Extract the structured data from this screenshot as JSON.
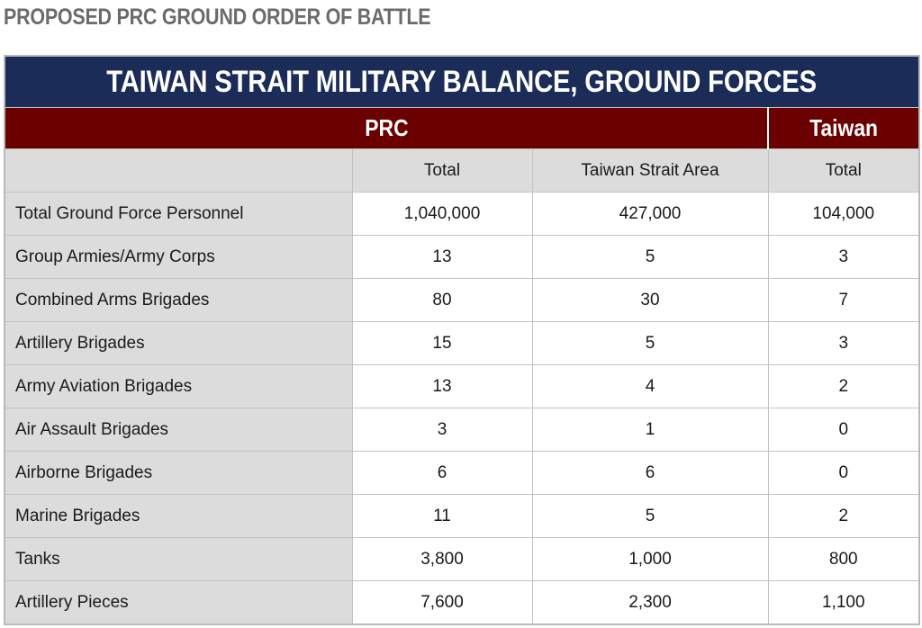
{
  "page_heading": "PROPOSED PRC GROUND ORDER OF BATTLE",
  "table": {
    "title": "TAIWAN STRAIT MILITARY BALANCE, GROUND FORCES",
    "groups": {
      "prc": "PRC",
      "taiwan": "Taiwan"
    },
    "subheaders": {
      "label": "",
      "prc_total": "Total",
      "prc_strait": "Taiwan Strait Area",
      "taiwan_total": "Total"
    },
    "rows": [
      {
        "label": "Total Ground Force Personnel",
        "prc_total": "1,040,000",
        "prc_strait": "427,000",
        "taiwan_total": "104,000"
      },
      {
        "label": "Group Armies/Army Corps",
        "prc_total": "13",
        "prc_strait": "5",
        "taiwan_total": "3"
      },
      {
        "label": "Combined Arms Brigades",
        "prc_total": "80",
        "prc_strait": "30",
        "taiwan_total": "7"
      },
      {
        "label": "Artillery Brigades",
        "prc_total": "15",
        "prc_strait": "5",
        "taiwan_total": "3"
      },
      {
        "label": "Army Aviation Brigades",
        "prc_total": "13",
        "prc_strait": "4",
        "taiwan_total": "2"
      },
      {
        "label": "Air Assault Brigades",
        "prc_total": "3",
        "prc_strait": "1",
        "taiwan_total": "0"
      },
      {
        "label": "Airborne Brigades",
        "prc_total": "6",
        "prc_strait": "6",
        "taiwan_total": "0"
      },
      {
        "label": "Marine Brigades",
        "prc_total": "11",
        "prc_strait": "5",
        "taiwan_total": "2"
      },
      {
        "label": "Tanks",
        "prc_total": "3,800",
        "prc_strait": "1,000",
        "taiwan_total": "800"
      },
      {
        "label": "Artillery Pieces",
        "prc_total": "7,600",
        "prc_strait": "2,300",
        "taiwan_total": "1,100"
      }
    ]
  }
}
